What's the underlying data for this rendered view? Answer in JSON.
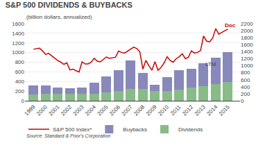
{
  "chart_data": {
    "type": "bar",
    "stacked": true,
    "title": "S&P 500 DIVIDENDS & BUYBACKS",
    "subtitle": "(billion dollars, annualized)",
    "source": "Source: Standard & Poor's Corporation",
    "x": [
      1999,
      2000,
      2001,
      2002,
      2003,
      2004,
      2005,
      2006,
      2007,
      2008,
      2009,
      2010,
      2011,
      2012,
      2013,
      2014,
      2015
    ],
    "xlim": [
      1998.3,
      2016.0
    ],
    "xticks": [
      1999,
      2000,
      2001,
      2002,
      2003,
      2004,
      2005,
      2006,
      2007,
      2008,
      2009,
      2010,
      2011,
      2012,
      2013,
      2014,
      2015
    ],
    "ylim": [
      0,
      1600
    ],
    "yticks": [
      0,
      200,
      400,
      600,
      800,
      1000,
      1200,
      1400,
      1600
    ],
    "y2lim": [
      0,
      2200
    ],
    "y2ticks": [
      0,
      200,
      400,
      600,
      800,
      1000,
      1200,
      1400,
      1600,
      1800,
      2000,
      2200
    ],
    "grid": true,
    "legend": "bottom",
    "series": [
      {
        "name": "Dividends",
        "color": "#88bb88",
        "values": [
          130,
          140,
          140,
          140,
          140,
          150,
          170,
          200,
          240,
          240,
          195,
          205,
          235,
          270,
          305,
          350,
          390
        ]
      },
      {
        "name": "Buybacks",
        "color": "#8888bb",
        "values": [
          180,
          170,
          130,
          120,
          140,
          230,
          340,
          430,
          590,
          340,
          130,
          290,
          400,
          400,
          470,
          550,
          620
        ]
      },
      {
        "name": "S&P 500 Index*",
        "type": "line",
        "axis": "y2",
        "color": "#cc0000",
        "x": [
          1999,
          1999.25,
          1999.5,
          1999.75,
          2000,
          2000.25,
          2000.5,
          2000.75,
          2001,
          2001.25,
          2001.5,
          2001.75,
          2002,
          2002.25,
          2002.5,
          2002.75,
          2003,
          2003.25,
          2003.5,
          2003.75,
          2004,
          2004.25,
          2004.5,
          2004.75,
          2005,
          2005.25,
          2005.5,
          2005.75,
          2006,
          2006.25,
          2006.5,
          2006.75,
          2007,
          2007.25,
          2007.5,
          2007.75,
          2008,
          2008.25,
          2008.5,
          2008.75,
          2009,
          2009.25,
          2009.5,
          2009.75,
          2010,
          2010.25,
          2010.5,
          2010.75,
          2011,
          2011.25,
          2011.5,
          2011.75,
          2012,
          2012.25,
          2012.5,
          2012.75,
          2013,
          2013.25,
          2013.5,
          2013.75,
          2014,
          2014.25,
          2014.5,
          2014.75,
          2015
        ],
        "values": [
          1469,
          1480,
          1500,
          1420,
          1320,
          1350,
          1280,
          1200,
          1148,
          1100,
          1040,
          1080,
          879,
          900,
          860,
          820,
          1111,
          1050,
          1050,
          1100,
          1212,
          1130,
          1110,
          1180,
          1248,
          1210,
          1220,
          1240,
          1418,
          1380,
          1360,
          1420,
          1468,
          1530,
          1490,
          1400,
          903,
          1150,
          1000,
          870,
          1115,
          870,
          950,
          1080,
          1258,
          1150,
          1100,
          1200,
          1257,
          1340,
          1200,
          1240,
          1426,
          1360,
          1380,
          1430,
          1848,
          1700,
          1680,
          1790,
          2059,
          1900,
          1950,
          2000,
          2043
        ]
      }
    ],
    "annotations": [
      {
        "text": "LTM",
        "x": 2013.6,
        "y": 660
      },
      {
        "text": "Doc",
        "x": 2015.2,
        "y": 2020,
        "axis": "y2"
      }
    ]
  }
}
